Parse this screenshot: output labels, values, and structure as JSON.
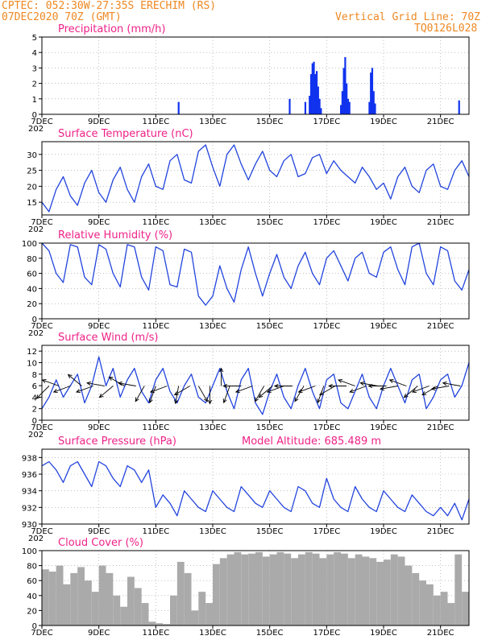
{
  "header": {
    "line1": "CPTEC:  052:30W-27:35S  ERECHIM (RS)",
    "line2": "07DEC2020 70Z (GMT)",
    "grid_note": "Vertical Grid Line: 70Z",
    "code": "TQ0126L028",
    "model_altitude": "Model Altitude: 685.489 m"
  },
  "colors": {
    "header": "#ee8822",
    "title": "#ee2288",
    "line": "#2244dd",
    "bar": "#1133ee",
    "cloud": "#aaaaaa",
    "arrow": "#000000"
  },
  "x_axis": {
    "start_day": 7,
    "end_day": 22,
    "tick_days": [
      7,
      9,
      11,
      13,
      15,
      17,
      19,
      21
    ],
    "labels": [
      "7DEC",
      "9DEC",
      "11DEC",
      "13DEC",
      "15DEC",
      "17DEC",
      "19DEC",
      "21DEC"
    ],
    "first_tick_sub": "202"
  },
  "chart_data": [
    {
      "type": "bar",
      "id": "precip",
      "title": "Precipitation (mm/h)",
      "ylim": [
        0,
        5
      ],
      "yticks": [
        0,
        1,
        2,
        3,
        4,
        5
      ],
      "x_days": [
        11.8,
        15.7,
        16.25,
        16.4,
        16.45,
        16.5,
        16.55,
        16.6,
        16.65,
        16.7,
        16.75,
        16.8,
        17.5,
        17.55,
        17.6,
        17.65,
        17.7,
        17.75,
        17.8,
        18.5,
        18.55,
        18.6,
        18.65,
        18.7,
        21.65
      ],
      "values": [
        0.8,
        1.0,
        0.8,
        1.2,
        2.6,
        3.3,
        3.4,
        2.6,
        2.8,
        1.8,
        1.0,
        0.4,
        0.6,
        1.5,
        3.0,
        3.7,
        2.0,
        1.0,
        0.8,
        0.8,
        2.7,
        3.0,
        1.5,
        0.7,
        0.9
      ]
    },
    {
      "type": "line",
      "id": "temp",
      "title": "Surface Temperature (nC)",
      "ylim": [
        11,
        34
      ],
      "yticks": [
        15,
        20,
        25,
        30
      ],
      "x_days": [
        7.0,
        7.25,
        7.5,
        7.75,
        8.0,
        8.25,
        8.5,
        8.75,
        9.0,
        9.25,
        9.5,
        9.75,
        10.0,
        10.25,
        10.5,
        10.75,
        11.0,
        11.25,
        11.5,
        11.75,
        12.0,
        12.25,
        12.5,
        12.75,
        13.0,
        13.25,
        13.5,
        13.75,
        14.0,
        14.25,
        14.5,
        14.75,
        15.0,
        15.25,
        15.5,
        15.75,
        16.0,
        16.25,
        16.5,
        16.75,
        17.0,
        17.25,
        17.5,
        17.75,
        18.0,
        18.25,
        18.5,
        18.75,
        19.0,
        19.25,
        19.5,
        19.75,
        20.0,
        20.25,
        20.5,
        20.75,
        21.0,
        21.25,
        21.5,
        21.75,
        22.0
      ],
      "values": [
        15,
        12,
        19,
        23,
        17,
        14,
        21,
        25,
        18,
        15,
        22,
        26,
        19,
        15,
        23,
        27,
        20,
        19,
        28,
        30,
        22,
        21,
        31,
        33,
        26,
        20,
        30,
        33,
        27,
        22,
        27,
        31,
        25,
        23,
        28,
        30,
        23,
        24,
        29,
        30,
        24,
        28,
        25,
        23,
        21,
        26,
        23,
        19,
        21,
        16,
        23,
        26,
        20,
        18,
        25,
        27,
        20,
        19,
        25,
        28,
        23
      ]
    },
    {
      "type": "line",
      "id": "rh",
      "title": "Relative Humidity (%)",
      "ylim": [
        0,
        100
      ],
      "yticks": [
        0,
        20,
        40,
        60,
        80,
        100
      ],
      "x_days": [
        7.0,
        7.25,
        7.5,
        7.75,
        8.0,
        8.25,
        8.5,
        8.75,
        9.0,
        9.25,
        9.5,
        9.75,
        10.0,
        10.25,
        10.5,
        10.75,
        11.0,
        11.25,
        11.5,
        11.75,
        12.0,
        12.25,
        12.5,
        12.75,
        13.0,
        13.25,
        13.5,
        13.75,
        14.0,
        14.25,
        14.5,
        14.75,
        15.0,
        15.25,
        15.5,
        15.75,
        16.0,
        16.25,
        16.5,
        16.75,
        17.0,
        17.25,
        17.5,
        17.75,
        18.0,
        18.25,
        18.5,
        18.75,
        19.0,
        19.25,
        19.5,
        19.75,
        20.0,
        20.25,
        20.5,
        20.75,
        21.0,
        21.25,
        21.5,
        21.75,
        22.0
      ],
      "values": [
        100,
        90,
        60,
        48,
        98,
        95,
        55,
        45,
        98,
        92,
        60,
        42,
        98,
        95,
        55,
        38,
        95,
        90,
        45,
        42,
        92,
        88,
        30,
        18,
        30,
        70,
        40,
        22,
        65,
        95,
        60,
        30,
        60,
        85,
        55,
        40,
        70,
        88,
        60,
        45,
        80,
        90,
        70,
        50,
        80,
        88,
        60,
        55,
        88,
        95,
        65,
        45,
        95,
        100,
        60,
        45,
        95,
        90,
        50,
        38,
        65
      ]
    },
    {
      "type": "line",
      "id": "wind",
      "title": "Surface Wind (m/s)",
      "ylim": [
        0,
        13
      ],
      "yticks": [
        0,
        2,
        4,
        6,
        8,
        10,
        12
      ],
      "x_days": [
        7.0,
        7.25,
        7.5,
        7.75,
        8.0,
        8.25,
        8.5,
        8.75,
        9.0,
        9.25,
        9.5,
        9.75,
        10.0,
        10.25,
        10.5,
        10.75,
        11.0,
        11.25,
        11.5,
        11.75,
        12.0,
        12.25,
        12.5,
        12.75,
        13.0,
        13.25,
        13.5,
        13.75,
        14.0,
        14.25,
        14.5,
        14.75,
        15.0,
        15.25,
        15.5,
        15.75,
        16.0,
        16.25,
        16.5,
        16.75,
        17.0,
        17.25,
        17.5,
        17.75,
        18.0,
        18.25,
        18.5,
        18.75,
        19.0,
        19.25,
        19.5,
        19.75,
        20.0,
        20.25,
        20.5,
        20.75,
        21.0,
        21.25,
        21.5,
        21.75,
        22.0
      ],
      "values": [
        2,
        4,
        7,
        4,
        6,
        8,
        3,
        6,
        11,
        6,
        9,
        4,
        7,
        9,
        5,
        3,
        7,
        9,
        5,
        3,
        6,
        8,
        4,
        3,
        6,
        9,
        5,
        2,
        7,
        9,
        3,
        1,
        5,
        8,
        4,
        2,
        6,
        9,
        5,
        2,
        7,
        8,
        3,
        2,
        5,
        8,
        4,
        2,
        6,
        9,
        6,
        3,
        7,
        8,
        2,
        4,
        7,
        8,
        4,
        6,
        10
      ],
      "arrow_days": [
        7.25,
        7.6,
        8.0,
        8.4,
        8.8,
        9.2,
        9.5,
        9.9,
        10.3,
        10.6,
        11.0,
        11.4,
        11.8,
        12.2,
        12.5,
        12.9,
        13.3,
        13.6,
        14.0,
        14.4,
        14.8,
        15.1,
        15.5,
        15.8,
        16.2,
        16.6,
        16.9,
        17.3,
        17.7,
        18.0,
        18.4,
        18.8,
        19.1,
        19.5,
        19.8,
        20.2,
        20.6,
        20.9,
        21.3,
        21.7
      ],
      "arrow_angles_deg": [
        225,
        160,
        200,
        140,
        200,
        170,
        220,
        150,
        170,
        240,
        250,
        200,
        260,
        210,
        300,
        270,
        90,
        250,
        180,
        200,
        240,
        220,
        200,
        180,
        240,
        200,
        250,
        210,
        180,
        160,
        200,
        170,
        180,
        190,
        160,
        220,
        200,
        210,
        190,
        170
      ],
      "arrow_lens": [
        1.0,
        1.0,
        1.0,
        1.0,
        1.0,
        1.0,
        1.0,
        1.0,
        1.0,
        1.0,
        1.0,
        1.0,
        1.0,
        1.0,
        1.0,
        1.0,
        1.0,
        1.0,
        1.0,
        1.0,
        1.0,
        1.0,
        1.0,
        1.0,
        1.0,
        1.0,
        1.0,
        1.0,
        1.0,
        1.0,
        1.0,
        1.0,
        1.0,
        1.0,
        1.0,
        1.0,
        1.0,
        1.0,
        1.0,
        1.0
      ]
    },
    {
      "type": "line",
      "id": "press",
      "title": "Surface Pressure (hPa)",
      "ylim": [
        930,
        939
      ],
      "yticks": [
        930,
        932,
        934,
        936,
        938
      ],
      "x_days": [
        7.0,
        7.25,
        7.5,
        7.75,
        8.0,
        8.25,
        8.5,
        8.75,
        9.0,
        9.25,
        9.5,
        9.75,
        10.0,
        10.25,
        10.5,
        10.75,
        11.0,
        11.25,
        11.5,
        11.75,
        12.0,
        12.25,
        12.5,
        12.75,
        13.0,
        13.25,
        13.5,
        13.75,
        14.0,
        14.25,
        14.5,
        14.75,
        15.0,
        15.25,
        15.5,
        15.75,
        16.0,
        16.25,
        16.5,
        16.75,
        17.0,
        17.25,
        17.5,
        17.75,
        18.0,
        18.25,
        18.5,
        18.75,
        19.0,
        19.25,
        19.5,
        19.75,
        20.0,
        20.25,
        20.5,
        20.75,
        21.0,
        21.25,
        21.5,
        21.75,
        22.0
      ],
      "values": [
        937,
        937.5,
        936.5,
        935,
        937,
        937.5,
        936,
        934.5,
        937.5,
        937,
        935.5,
        934.5,
        937,
        936.5,
        935,
        936.5,
        932,
        933.5,
        932.5,
        931,
        934,
        933,
        932,
        931.5,
        934,
        933,
        932,
        931.5,
        934.5,
        933.5,
        932.5,
        932,
        934,
        933,
        932,
        931.5,
        934.5,
        934,
        932.5,
        932,
        935.5,
        933,
        932,
        931.5,
        934.5,
        933,
        932,
        931.5,
        934,
        933,
        932,
        931.5,
        933.5,
        932.5,
        931.5,
        931,
        932,
        931,
        932.5,
        930.5,
        933
      ]
    },
    {
      "type": "bar",
      "id": "cloud",
      "title": "Cloud Cover (%)",
      "ylim": [
        0,
        100
      ],
      "yticks": [
        0,
        20,
        40,
        60,
        80,
        100
      ],
      "x_days": [
        7.0,
        7.25,
        7.5,
        7.75,
        8.0,
        8.25,
        8.5,
        8.75,
        9.0,
        9.25,
        9.5,
        9.75,
        10.0,
        10.25,
        10.5,
        10.75,
        11.0,
        11.25,
        11.5,
        11.75,
        12.0,
        12.25,
        12.5,
        12.75,
        13.0,
        13.25,
        13.5,
        13.75,
        14.0,
        14.25,
        14.5,
        14.75,
        15.0,
        15.25,
        15.5,
        15.75,
        16.0,
        16.25,
        16.5,
        16.75,
        17.0,
        17.25,
        17.5,
        17.75,
        18.0,
        18.25,
        18.5,
        18.75,
        19.0,
        19.25,
        19.5,
        19.75,
        20.0,
        20.25,
        20.5,
        20.75,
        21.0,
        21.25,
        21.5,
        21.75,
        22.0
      ],
      "values": [
        75,
        72,
        80,
        55,
        70,
        78,
        60,
        45,
        80,
        70,
        40,
        25,
        65,
        50,
        30,
        5,
        3,
        2,
        40,
        85,
        70,
        20,
        45,
        30,
        82,
        90,
        95,
        98,
        95,
        96,
        98,
        92,
        95,
        98,
        96,
        90,
        95,
        98,
        96,
        90,
        95,
        98,
        96,
        90,
        95,
        92,
        90,
        85,
        88,
        95,
        92,
        80,
        70,
        60,
        55,
        40,
        45,
        30,
        95,
        45,
        15
      ]
    }
  ]
}
